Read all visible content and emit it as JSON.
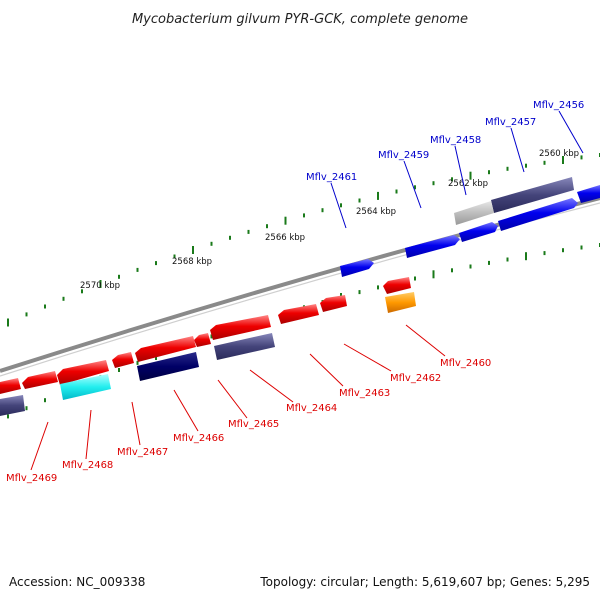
{
  "title": "Mycobacterium gilvum PYR-GCK, complete genome",
  "footer": {
    "accession": "Accession: NC_009338",
    "summary": "Topology: circular; Length: 5,619,607 bp; Genes: 5,295"
  },
  "colors": {
    "forward_label": "#0000cc",
    "reverse_label": "#dd0000",
    "backbone": "#888888",
    "tick": "#1a7a1a"
  },
  "kbp_labels": [
    "2560 kbp",
    "2562 kbp",
    "2564 kbp",
    "2566 kbp",
    "2568 kbp",
    "2570 kbp"
  ],
  "forward_genes": [
    {
      "label": "Mflv_2456",
      "fill": "#0000ee"
    },
    {
      "label": "Mflv_2457",
      "fill": "#0000ee"
    },
    {
      "label": "Mflv_2458",
      "fill": "#0000ee"
    },
    {
      "label": "Mflv_2459",
      "fill": "#0000ee"
    },
    {
      "label": "Mflv_2461",
      "fill": "#0000ee"
    }
  ],
  "reverse_genes": [
    {
      "label": "Mflv_2460",
      "fill": "#ee0000"
    },
    {
      "label": "Mflv_2462",
      "fill": "#ee0000"
    },
    {
      "label": "Mflv_2463",
      "fill": "#ee0000"
    },
    {
      "label": "Mflv_2464",
      "fill": "#ee0000"
    },
    {
      "label": "Mflv_2465",
      "fill": "#ee0000"
    },
    {
      "label": "Mflv_2466",
      "fill": "#ee0000"
    },
    {
      "label": "Mflv_2467",
      "fill": "#ee0000"
    },
    {
      "label": "Mflv_2468",
      "fill": "#ee0000"
    },
    {
      "label": "Mflv_2469",
      "fill": "#ee0000"
    }
  ]
}
